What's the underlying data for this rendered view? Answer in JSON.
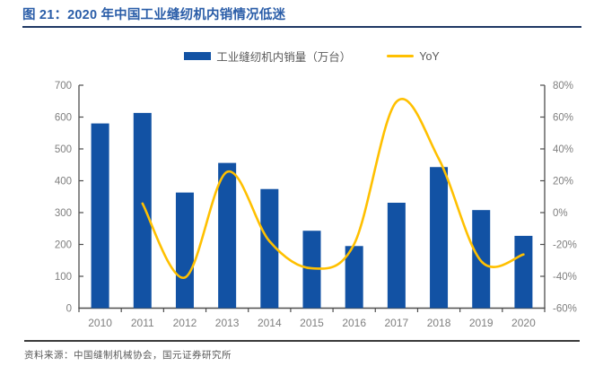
{
  "header": {
    "figure_title": "图 21：2020 年中国工业缝纫机内销情况低迷"
  },
  "legend": {
    "bar_label": "工业缝纫机内销量（万台）",
    "line_label": "YoY"
  },
  "footer": {
    "source_note": "资料来源：中国缝制机械协会，国元证券研究所"
  },
  "colors": {
    "bar_blue": "#1252A4",
    "line_yellow": "#FFC000",
    "title_blue": "#2A5DA8",
    "title_rule_navy": "#1F3864",
    "axis_line": "#4d4d4d",
    "tick_label_gray": "#7F7F7F"
  },
  "chart_data": {
    "type": "bar+line",
    "title": "2020 年中国工业缝纫机内销情况低迷",
    "categories": [
      "2010",
      "2011",
      "2012",
      "2013",
      "2014",
      "2015",
      "2016",
      "2017",
      "2018",
      "2019",
      "2020"
    ],
    "series": [
      {
        "name": "工业缝纫机内销量（万台）",
        "type": "bar",
        "axis": "left",
        "values": [
          580,
          613,
          363,
          456,
          374,
          243,
          195,
          331,
          443,
          308,
          227
        ]
      },
      {
        "name": "YoY",
        "type": "line",
        "axis": "right",
        "values_pct": [
          null,
          5.7,
          -40.8,
          25.6,
          -18.0,
          -35.0,
          -19.8,
          69.7,
          33.8,
          -30.5,
          -26.3
        ]
      }
    ],
    "left_axis": {
      "min": 0,
      "max": 700,
      "step": 100,
      "tick_labels": [
        "0",
        "100",
        "200",
        "300",
        "400",
        "500",
        "600",
        "700"
      ]
    },
    "right_axis": {
      "min": -60,
      "max": 80,
      "step": 20,
      "tick_labels": [
        "-60%",
        "-40%",
        "-20%",
        "0%",
        "20%",
        "40%",
        "60%",
        "80%"
      ]
    },
    "grid": false,
    "legend_position": "top-center",
    "smooth_line": true
  }
}
